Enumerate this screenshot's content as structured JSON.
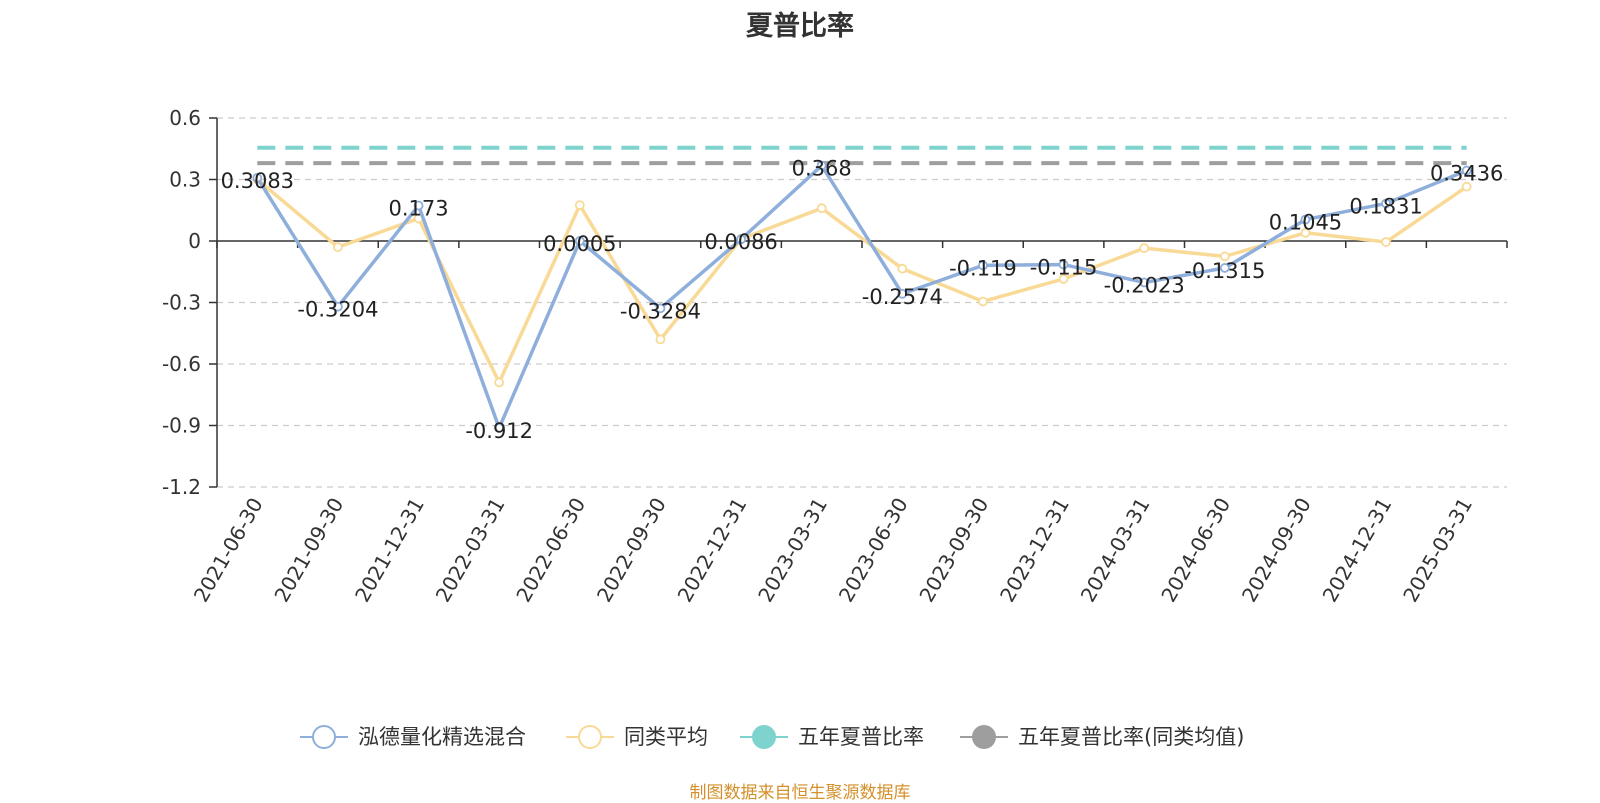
{
  "title": "夏普比率",
  "source_note": "制图数据来自恒生聚源数据库",
  "chart_data": {
    "type": "line",
    "title": "夏普比率",
    "xlabel": "",
    "ylabel": "",
    "ylim": [
      -1.2,
      0.6
    ],
    "yticks": [
      0.6,
      0.3,
      0,
      -0.3,
      -0.6,
      -0.9,
      -1.2
    ],
    "ytick_labels": [
      "0.6",
      "0.3",
      "0",
      "-0.3",
      "-0.6",
      "-0.9",
      "-1.2"
    ],
    "grid": true,
    "legend_position": "bottom",
    "categories": [
      "2021-06-30",
      "2021-09-30",
      "2021-12-31",
      "2022-03-31",
      "2022-06-30",
      "2022-09-30",
      "2022-12-31",
      "2023-03-31",
      "2023-06-30",
      "2023-09-30",
      "2023-12-31",
      "2024-03-31",
      "2024-06-30",
      "2024-09-30",
      "2024-12-31",
      "2025-03-31"
    ],
    "series": [
      {
        "name": "泓德量化精选混合",
        "color": "#8eaedb",
        "marker": "hollow-circle",
        "values": [
          0.3083,
          -0.3204,
          0.173,
          -0.912,
          0.0005,
          -0.3284,
          0.0086,
          0.368,
          -0.2574,
          -0.119,
          -0.115,
          -0.2023,
          -0.1315,
          0.1045,
          0.1831,
          0.3436
        ],
        "labels": [
          "0.3083",
          "-0.3204",
          "0.173",
          "-0.912",
          "0.0005",
          "-0.3284",
          "0.0086",
          "0.368",
          "-0.2574",
          "-0.119",
          "-0.115",
          "-0.2023",
          "-0.1315",
          "0.1045",
          "0.1831",
          "0.3436"
        ]
      },
      {
        "name": "同类平均",
        "color": "#f9d996",
        "marker": "hollow-circle",
        "values": [
          0.3,
          -0.03,
          0.11,
          -0.69,
          0.175,
          -0.48,
          0.01,
          0.16,
          -0.135,
          -0.295,
          -0.185,
          -0.035,
          -0.075,
          0.04,
          -0.005,
          0.265
        ]
      },
      {
        "name": "五年夏普比率",
        "color": "#7fd3cf",
        "marker": "filled-circle",
        "style": "dashed",
        "value": 0.455
      },
      {
        "name": "五年夏普比率(同类均值)",
        "color": "#9e9e9e",
        "marker": "filled-circle",
        "style": "dashed",
        "value": 0.38
      }
    ]
  }
}
